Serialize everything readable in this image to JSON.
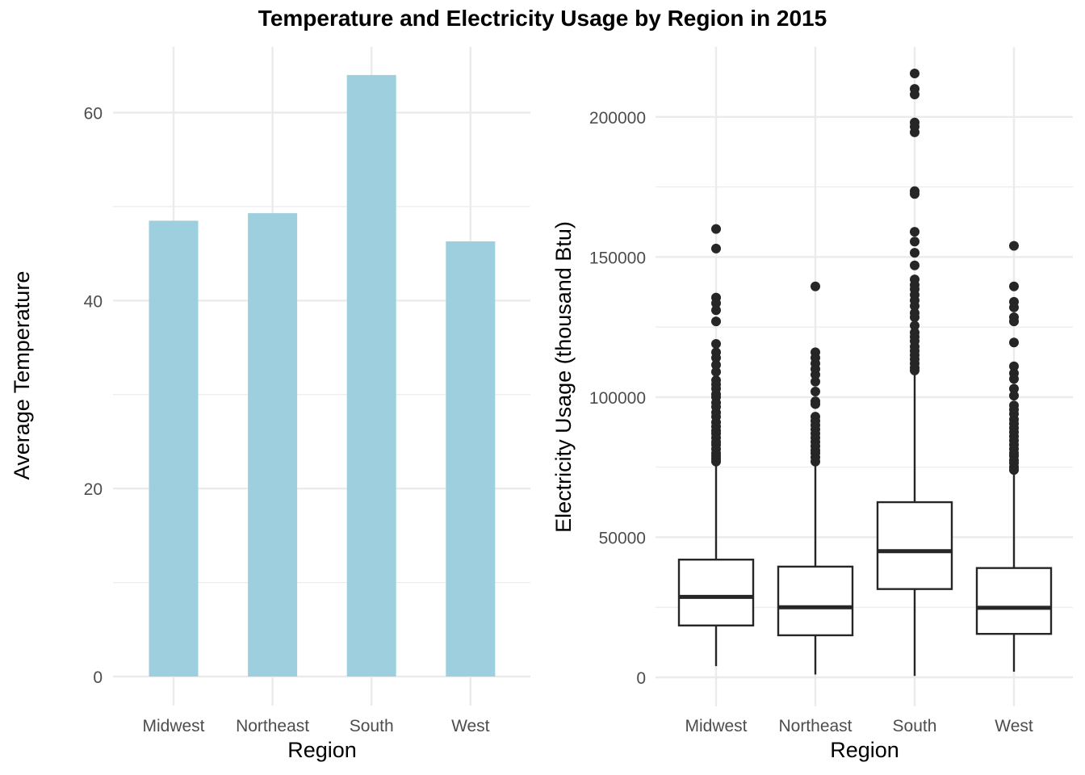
{
  "figure": {
    "title": "Temperature and Electricity Usage by Region in 2015",
    "grid": true,
    "colors": {
      "bar_fill": "#9ecfdf",
      "grid": "#ebebeb",
      "box_stroke": "#262626",
      "outlier": "#262626",
      "tick_text": "#4d4d4d"
    }
  },
  "chart_data": [
    {
      "type": "bar",
      "categories": [
        "Midwest",
        "Northeast",
        "South",
        "West"
      ],
      "values": [
        48.5,
        49.3,
        64.0,
        46.3
      ],
      "xlabel": "Region",
      "ylabel": "Average Temperature",
      "ylim": [
        0,
        67
      ],
      "yticks": [
        0,
        20,
        40,
        60
      ],
      "ytick_labels": [
        "0",
        "20",
        "40",
        "60"
      ]
    },
    {
      "type": "box",
      "categories": [
        "Midwest",
        "Northeast",
        "South",
        "West"
      ],
      "xlabel": "Region",
      "ylabel": "Electricity Usage (thousand Btu)",
      "ylim": [
        0,
        225000
      ],
      "yticks": [
        0,
        50000,
        100000,
        150000,
        200000
      ],
      "ytick_labels": [
        "0",
        "50000",
        "100000",
        "150000",
        "200000"
      ],
      "boxes": [
        {
          "category": "Midwest",
          "whisker_low": 4000,
          "q1": 18500,
          "median": 28700,
          "q3": 42000,
          "whisker_high": 76500,
          "outliers": [
            77000,
            78000,
            79000,
            80000,
            81500,
            83000,
            84000,
            85500,
            87000,
            88000,
            89500,
            91000,
            93000,
            94500,
            96500,
            98000,
            100000,
            101000,
            103000,
            104500,
            106000,
            109000,
            111500,
            114000,
            116000,
            119000,
            127000,
            131000,
            133500,
            135500,
            153000,
            160000
          ]
        },
        {
          "category": "Northeast",
          "whisker_low": 1000,
          "q1": 15000,
          "median": 25000,
          "q3": 39500,
          "whisker_high": 76000,
          "outliers": [
            77000,
            78500,
            80000,
            81000,
            82500,
            84000,
            85500,
            87000,
            88500,
            90000,
            91500,
            93000,
            97500,
            98500,
            102000,
            105500,
            108000,
            110000,
            112000,
            114000,
            116000,
            139500
          ]
        },
        {
          "category": "South",
          "whisker_low": 500,
          "q1": 31500,
          "median": 45000,
          "q3": 62500,
          "whisker_high": 108000,
          "outliers": [
            109500,
            110500,
            112000,
            113500,
            115000,
            116500,
            118000,
            120000,
            121500,
            123000,
            125500,
            128500,
            130000,
            132500,
            134500,
            136500,
            138500,
            140000,
            142000,
            147000,
            151500,
            155500,
            159000,
            172500,
            173500,
            194500,
            196500,
            198000,
            208000,
            210000,
            215500
          ]
        },
        {
          "category": "West",
          "whisker_low": 2000,
          "q1": 15500,
          "median": 24800,
          "q3": 39000,
          "whisker_high": 73000,
          "outliers": [
            74000,
            75000,
            76500,
            77500,
            79000,
            80000,
            81500,
            83000,
            84500,
            86000,
            87500,
            89000,
            90500,
            92000,
            94000,
            95500,
            97000,
            100500,
            103000,
            106500,
            108500,
            111000,
            119500,
            127000,
            128500,
            132000,
            134000,
            139500,
            154000
          ]
        }
      ]
    }
  ]
}
